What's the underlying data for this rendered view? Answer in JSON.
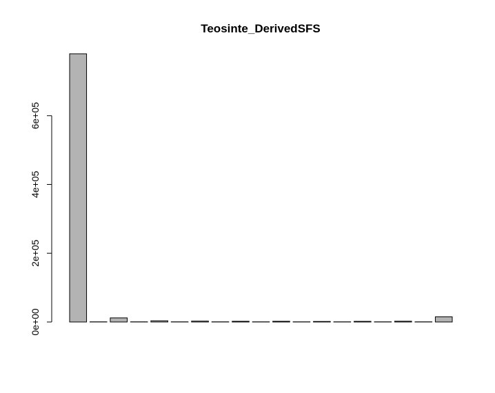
{
  "chart_data": {
    "type": "bar",
    "title": "Teosinte_DerivedSFS",
    "categories": [
      null,
      null,
      null,
      null,
      null,
      null,
      null,
      null,
      null,
      null,
      null,
      null,
      null,
      null,
      null,
      null,
      null,
      null,
      null
    ],
    "values": [
      780000,
      500,
      12000,
      500,
      3500,
      500,
      2500,
      500,
      2000,
      500,
      2000,
      500,
      1500,
      500,
      1800,
      500,
      2200,
      500,
      15000
    ],
    "color": "#b3b3b3",
    "ylim": [
      0,
      780000
    ],
    "yticks": [
      {
        "value": 0,
        "label": "0e+00"
      },
      {
        "value": 200000,
        "label": "2e+05"
      },
      {
        "value": 400000,
        "label": "4e+05"
      },
      {
        "value": 600000,
        "label": "6e+05"
      }
    ]
  }
}
